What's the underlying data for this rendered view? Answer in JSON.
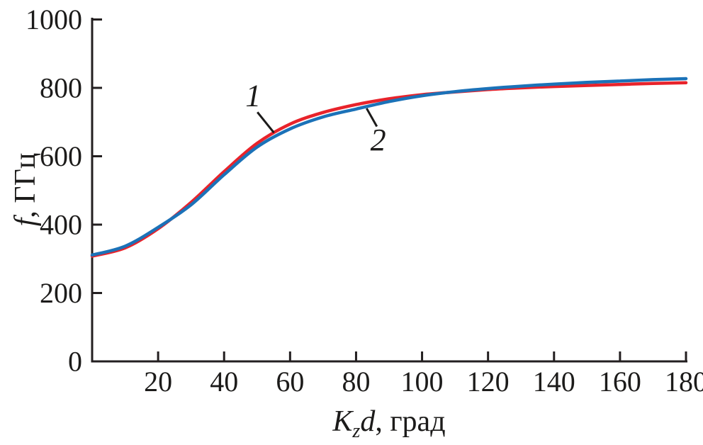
{
  "figure": {
    "background": "#ffffff",
    "axis_color": "#231f20",
    "text_color": "#1c1b1a"
  },
  "chart_data": {
    "type": "line",
    "title": "",
    "xlabel_text": "Kzd, град",
    "ylabel_text": "f, ГГц",
    "xlabel_parts": [
      {
        "t": "K",
        "style": "italic"
      },
      {
        "t": "z",
        "style": "subscript-italic"
      },
      {
        "t": "d",
        "style": "italic"
      },
      {
        "t": ", град",
        "style": "normal"
      }
    ],
    "ylabel_parts": [
      {
        "t": "f",
        "style": "italic"
      },
      {
        "t": ", ГГц",
        "style": "normal"
      }
    ],
    "xlim": [
      0,
      180
    ],
    "ylim": [
      0,
      1000
    ],
    "x_ticks": [
      20,
      40,
      60,
      80,
      100,
      120,
      140,
      160,
      180
    ],
    "y_ticks": [
      0,
      200,
      400,
      600,
      800,
      1000
    ],
    "grid": false,
    "legend_position": "none",
    "x": [
      0,
      10,
      20,
      30,
      40,
      50,
      60,
      70,
      80,
      90,
      100,
      110,
      120,
      130,
      140,
      150,
      160,
      170,
      180
    ],
    "series": [
      {
        "name": "1",
        "color": "#e8232b",
        "values": [
          308,
          332,
          388,
          465,
          555,
          638,
          694,
          728,
          751,
          768,
          780,
          788,
          795,
          800,
          804,
          807,
          810,
          813,
          815
        ]
      },
      {
        "name": "2",
        "color": "#1b72b8",
        "values": [
          311,
          337,
          392,
          458,
          546,
          627,
          680,
          715,
          738,
          760,
          777,
          789,
          798,
          805,
          811,
          816,
          820,
          824,
          827
        ]
      }
    ],
    "annotations": [
      {
        "text": "1",
        "label_x": 48.8,
        "label_y": 777,
        "leader_from_x": 50.1,
        "leader_from_y": 729,
        "leader_to_x": 55.1,
        "leader_to_y": 669
      },
      {
        "text": "2",
        "label_x": 86.7,
        "label_y": 648,
        "leader_from_x": 83.2,
        "leader_from_y": 740,
        "leader_to_x": 86.3,
        "leader_to_y": 687
      }
    ]
  }
}
